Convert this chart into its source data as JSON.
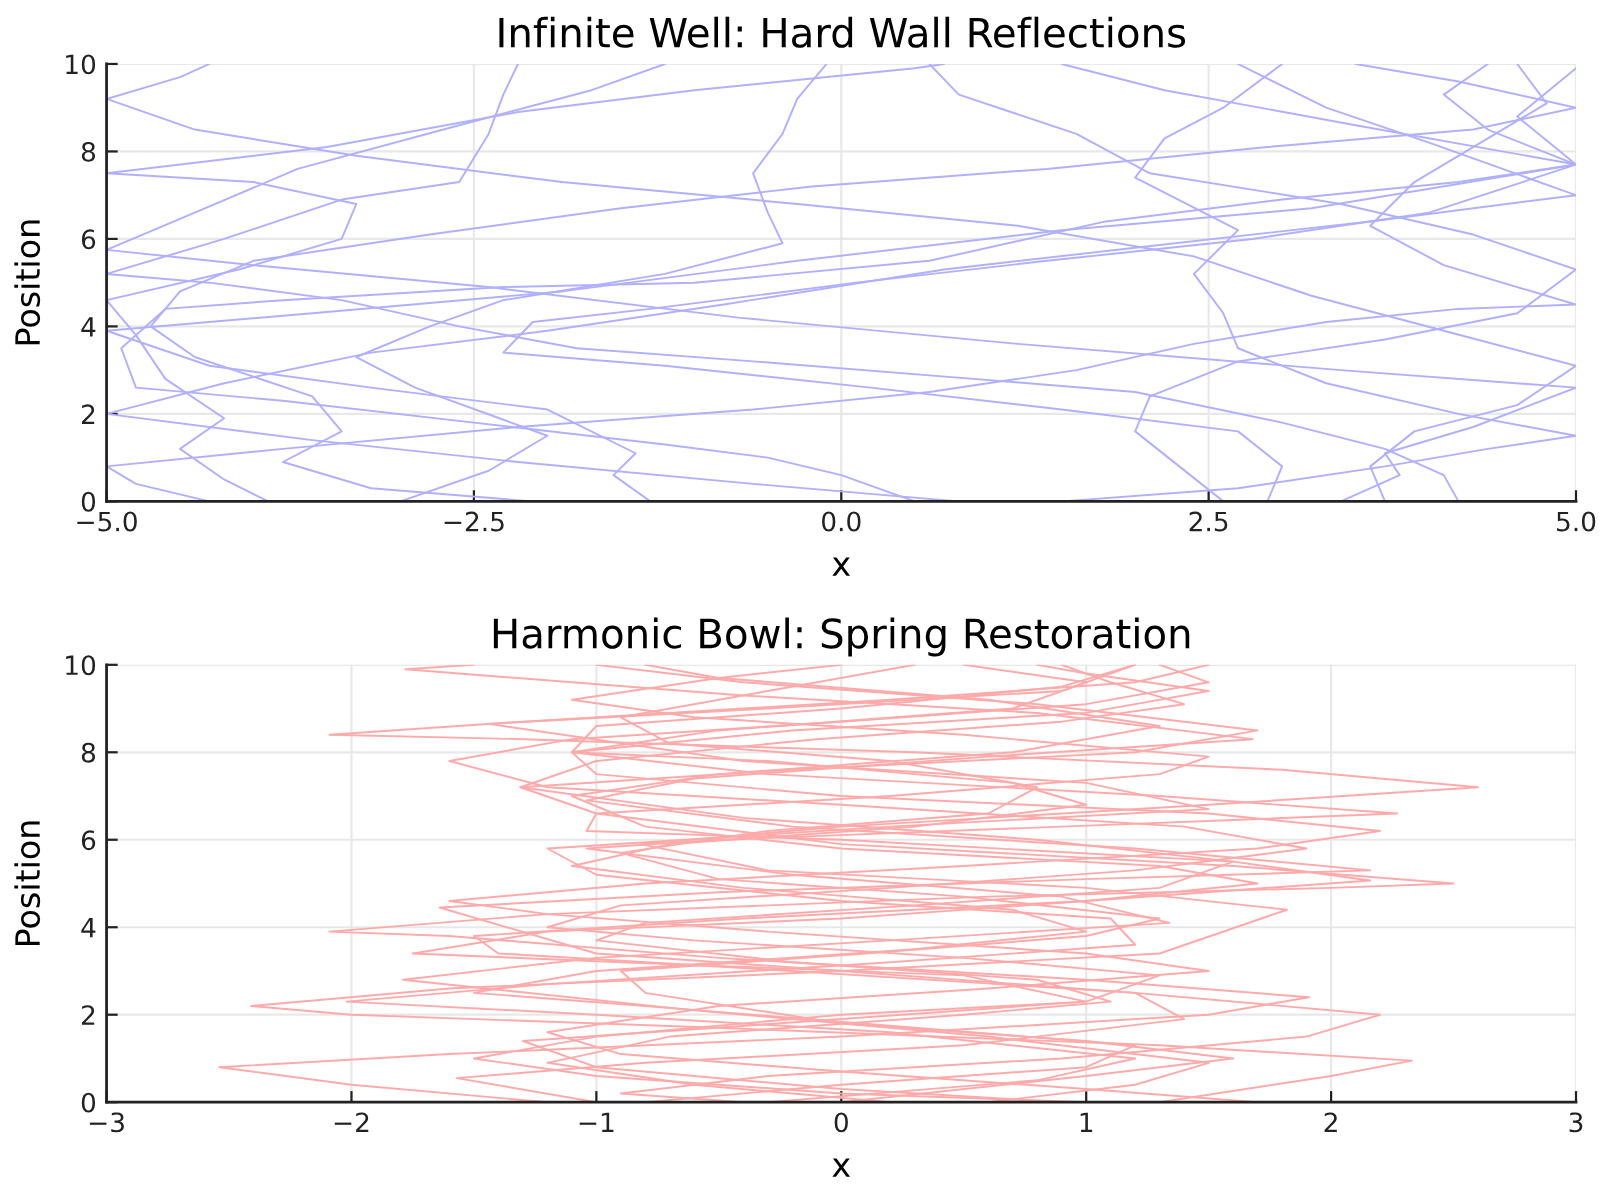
{
  "chart_data": [
    {
      "type": "line",
      "title": "Infinite Well: Hard Wall Reflections",
      "xlabel": "x",
      "ylabel": "Position",
      "xlim": [
        -5,
        5
      ],
      "ylim": [
        0,
        10
      ],
      "xticks": [
        {
          "value": -5,
          "label": "−5.0"
        },
        {
          "value": -2.5,
          "label": "−2.5"
        },
        {
          "value": 0,
          "label": "0.0"
        },
        {
          "value": 2.5,
          "label": "2.5"
        },
        {
          "value": 5,
          "label": "5.0"
        }
      ],
      "yticks": [
        0,
        2,
        4,
        6,
        8,
        10
      ],
      "grid": true,
      "series": [
        {
          "color": "#b0b0ff",
          "x": [
            -1.3,
            -1.55,
            -1.4,
            -2.0,
            -3.2,
            -4.3,
            -5.0,
            -3.6,
            -1.9,
            -0.3,
            1.5,
            3.2,
            5.0,
            3.5,
            2.2,
            1.5
          ],
          "values": [
            0,
            0.6,
            1.1,
            2.1,
            2.6,
            3.1,
            3.9,
            4.3,
            4.8,
            5.5,
            6.2,
            6.7,
            7.7,
            8.6,
            9.4,
            10
          ]
        },
        {
          "color": "#b0b0ff",
          "x": [
            0.8,
            -0.6,
            -2.2,
            -3.6,
            -5.0,
            -4.2,
            -3.2,
            -2.0,
            -0.8,
            0.7,
            2.0,
            3.6,
            5.0,
            4.0,
            3.3,
            2.7
          ],
          "values": [
            0,
            0.4,
            0.9,
            1.4,
            2.0,
            2.7,
            3.4,
            3.9,
            4.5,
            5.3,
            5.8,
            6.4,
            7.0,
            8.2,
            9.0,
            10
          ]
        },
        {
          "color": "#b0b0ff",
          "x": [
            3.4,
            3.8,
            3.7,
            4.3,
            5.0,
            3.4,
            1.2,
            -0.7,
            -2.4,
            -4.0,
            -5.0,
            -4.4,
            -3.7,
            -2.6,
            -1.7,
            -1.2
          ],
          "values": [
            0,
            0.6,
            1.1,
            1.7,
            2.6,
            3.0,
            3.6,
            4.2,
            4.9,
            5.4,
            5.75,
            6.6,
            7.6,
            8.6,
            9.4,
            10
          ]
        },
        {
          "color": "#b0b0ff",
          "x": [
            -4.3,
            -4.8,
            -5.0,
            -3.8,
            -2.2,
            -0.6,
            0.6,
            1.6,
            2.4,
            3.3,
            4.2,
            5.0,
            4.1,
            3.6,
            3.9,
            4.4,
            4.8,
            4.6
          ],
          "values": [
            0,
            0.4,
            0.8,
            1.2,
            1.7,
            2.1,
            2.5,
            3.0,
            3.6,
            4.1,
            4.4,
            4.5,
            5.4,
            6.3,
            7.3,
            8.3,
            9.1,
            10
          ]
        },
        {
          "color": "#b0b0ff",
          "x": [
            2.6,
            2.3,
            2.0,
            2.1,
            2.7,
            3.7,
            4.6,
            5.0,
            4.3,
            3.4,
            2.1,
            1.6,
            0.8,
            0.6
          ],
          "values": [
            0,
            0.8,
            1.6,
            2.4,
            3.2,
            3.7,
            4.3,
            5.3,
            6.1,
            6.8,
            7.5,
            8.4,
            9.3,
            10
          ]
        },
        {
          "color": "#b0b0ff",
          "x": [
            -2.1,
            -3.2,
            -3.8,
            -3.4,
            -3.6,
            -4.4,
            -4.7,
            -4.5,
            -4.0,
            -2.8,
            -1.5,
            -0.2,
            1.4,
            2.9,
            4.3,
            5.0,
            4.2,
            3.5
          ],
          "values": [
            0,
            0.3,
            0.9,
            1.6,
            2.4,
            3.3,
            4.0,
            4.8,
            5.5,
            6.1,
            6.7,
            7.2,
            7.6,
            8.1,
            8.5,
            9.0,
            9.6,
            10
          ]
        },
        {
          "color": "#b0b0ff",
          "x": [
            3.7,
            3.6,
            3.9,
            4.6,
            5.0,
            4.1,
            3.2,
            2.4,
            1.2,
            -0.3,
            -1.9,
            -3.3,
            -4.4,
            -5.0,
            -4.5,
            -4.3
          ],
          "values": [
            0,
            0.8,
            1.6,
            2.2,
            3.1,
            3.9,
            4.7,
            5.6,
            6.3,
            6.8,
            7.3,
            7.9,
            8.5,
            9.2,
            9.7,
            10
          ]
        },
        {
          "color": "#b0b0ff",
          "x": [
            -3.0,
            -2.4,
            -2.0,
            -2.9,
            -3.3,
            -2.8,
            -2.3,
            -1.2,
            -0.4,
            -0.5,
            -0.6,
            -0.4,
            -0.3,
            -0.1
          ],
          "values": [
            0,
            0.7,
            1.5,
            2.6,
            3.3,
            4.0,
            4.6,
            5.2,
            5.9,
            6.6,
            7.5,
            8.4,
            9.2,
            10
          ]
        },
        {
          "color": "#b0b0ff",
          "x": [
            4.2,
            4.1,
            3.7,
            3.0,
            2.0,
            0.9,
            -0.6,
            -1.8,
            -2.6,
            -3.4,
            -4.3,
            -5.0,
            -4.2,
            -3.4,
            -2.6,
            -2.4,
            -2.3,
            -2.2
          ],
          "values": [
            0,
            0.6,
            1.2,
            1.8,
            2.5,
            2.8,
            3.2,
            3.5,
            4.0,
            4.6,
            5.0,
            5.2,
            6.0,
            6.9,
            7.3,
            8.4,
            9.3,
            10
          ]
        },
        {
          "color": "#b0b0ff",
          "x": [
            1.5,
            2.7,
            3.7,
            4.4,
            5.0,
            4.2,
            3.3,
            2.7,
            2.6,
            2.4,
            2.7,
            2.0,
            2.2,
            2.6,
            3.0
          ],
          "values": [
            0,
            0.3,
            0.8,
            1.2,
            1.5,
            2.0,
            2.7,
            3.5,
            4.3,
            5.2,
            6.2,
            7.4,
            8.3,
            9.0,
            10
          ]
        },
        {
          "color": "#b0b0ff",
          "x": [
            0.5,
            0.0,
            -0.5,
            -1.2,
            -2.5,
            -3.8,
            -4.8,
            -4.9,
            -4.6,
            -3.8,
            -2.3,
            -1.0,
            0.6,
            1.8,
            3.0,
            4.2,
            5.0,
            4.4,
            4.1,
            4.4
          ],
          "values": [
            0,
            0.6,
            1.0,
            1.3,
            1.8,
            2.3,
            2.6,
            3.5,
            4.4,
            4.6,
            4.9,
            5.0,
            5.5,
            6.4,
            6.9,
            7.3,
            7.7,
            8.5,
            9.3,
            10
          ]
        },
        {
          "color": "#b0b0ff",
          "x": [
            -3.9,
            -4.2,
            -4.5,
            -4.2,
            -4.6,
            -4.8,
            -5.0,
            -4.1,
            -3.4,
            -3.3,
            -4.0,
            -5.0,
            -3.5,
            -2.2,
            -1.0,
            0.5,
            0.7
          ],
          "values": [
            0,
            0.5,
            1.2,
            1.9,
            2.8,
            3.8,
            4.6,
            5.3,
            6.0,
            6.8,
            7.3,
            7.5,
            8.1,
            8.9,
            9.4,
            9.9,
            10
          ]
        },
        {
          "color": "#b0b0ff",
          "x": [
            2.9,
            3.0,
            2.7,
            1.5,
            0.2,
            -1.2,
            -2.3,
            -2.1,
            -1.3,
            0.1,
            1.4,
            2.8,
            4.0,
            5.0,
            4.6,
            5.0
          ],
          "values": [
            0,
            0.8,
            1.6,
            2.1,
            2.6,
            3.1,
            3.4,
            4.1,
            4.4,
            5.0,
            5.5,
            6.0,
            6.6,
            7.7,
            8.8,
            9.9
          ]
        }
      ]
    },
    {
      "type": "line",
      "title": "Harmonic Bowl: Spring Restoration",
      "xlabel": "x",
      "ylabel": "Position",
      "xlim": [
        -3,
        3
      ],
      "ylim": [
        0,
        10
      ],
      "xticks": [
        {
          "value": -3,
          "label": "−3"
        },
        {
          "value": -2,
          "label": "−2"
        },
        {
          "value": -1,
          "label": "−1"
        },
        {
          "value": 0,
          "label": "0"
        },
        {
          "value": 1,
          "label": "1"
        },
        {
          "value": 2,
          "label": "2"
        },
        {
          "value": 3,
          "label": "3"
        }
      ],
      "yticks": [
        0,
        2,
        4,
        6,
        8,
        10
      ],
      "grid": true,
      "series": [
        {
          "color": "#ffaaaa",
          "x": [
            -1.2,
            -2.0,
            -2.54,
            -1.6,
            0.0,
            1.5,
            1.91,
            1.0,
            -0.5,
            -1.6,
            -2.09,
            -1.2,
            0.6,
            2.0,
            2.5,
            1.6,
            0.0,
            -1.0,
            -1.31,
            -0.2,
            1.2,
            1.7,
            0.8,
            -0.4,
            -1.0
          ],
          "values": [
            0,
            0.4,
            0.8,
            1.1,
            1.5,
            2.0,
            2.4,
            2.8,
            3.3,
            3.8,
            3.9,
            4.3,
            4.7,
            4.9,
            5.0,
            5.4,
            5.9,
            6.6,
            7.2,
            7.6,
            8.0,
            8.5,
            9.1,
            9.6,
            10
          ]
        },
        {
          "color": "#ffaaaa",
          "x": [
            1.3,
            2.0,
            2.33,
            1.3,
            -0.5,
            -2.0,
            -2.41,
            -1.6,
            0.0,
            1.3,
            1.82,
            1.0,
            -0.3,
            -0.82,
            0.0,
            1.5,
            2.6,
            1.8,
            0.3,
            -1.3,
            -2.09,
            -1.3,
            0.2,
            1.2,
            1.5
          ],
          "values": [
            0,
            0.6,
            0.95,
            1.3,
            1.7,
            2.0,
            2.2,
            2.6,
            3.0,
            3.4,
            4.4,
            4.9,
            5.3,
            5.9,
            6.3,
            6.8,
            7.2,
            7.6,
            8.0,
            8.3,
            8.4,
            8.7,
            9.2,
            9.6,
            10
          ]
        },
        {
          "color": "#ffaaaa",
          "x": [
            -1.0,
            -1.57,
            -0.8,
            0.5,
            1.4,
            1.2,
            0.0,
            -1.0,
            -1.64,
            -0.5,
            1.0,
            2.16,
            1.2,
            -0.2,
            -1.04,
            -0.6,
            0.6,
            1.68,
            0.8,
            -0.4,
            -1.1,
            -1.78,
            -1.5
          ],
          "values": [
            0,
            0.55,
            0.9,
            1.3,
            1.9,
            2.5,
            3.0,
            3.4,
            4.45,
            4.8,
            5.1,
            5.3,
            5.8,
            6.3,
            6.9,
            7.4,
            7.9,
            8.3,
            8.9,
            9.3,
            9.6,
            9.9,
            10
          ]
        },
        {
          "color": "#ffaaaa",
          "x": [
            0.6,
            1.2,
            1.5,
            0.6,
            -0.6,
            -1.79,
            -1.0,
            0.2,
            1.34,
            0.9,
            -0.2,
            -1.04,
            -0.5,
            0.9,
            2.27,
            1.3,
            -0.3,
            -1.1,
            -0.5,
            0.7,
            1.0,
            0.5
          ],
          "values": [
            0,
            0.4,
            0.9,
            1.5,
            2.1,
            2.8,
            3.3,
            3.7,
            4.1,
            4.7,
            5.2,
            5.8,
            6.0,
            6.3,
            6.6,
            7.0,
            7.5,
            8.0,
            8.5,
            9.0,
            9.6,
            10
          ]
        },
        {
          "color": "#ffaaaa",
          "x": [
            -0.3,
            0.8,
            1.2,
            0.2,
            -1.0,
            -2.02,
            -1.2,
            0.2,
            1.2,
            1.1,
            0.0,
            -1.0,
            -1.2,
            0.2,
            1.5,
            1.0,
            -0.4,
            -1.44,
            -0.3,
            0.9,
            1.2
          ],
          "values": [
            0,
            0.5,
            1.0,
            1.6,
            2.0,
            2.3,
            2.7,
            3.2,
            3.6,
            4.2,
            4.6,
            5.2,
            5.8,
            6.3,
            6.7,
            7.3,
            7.8,
            8.65,
            9.0,
            9.4,
            10
          ]
        },
        {
          "color": "#ffaaaa",
          "x": [
            0.9,
            0.0,
            -1.0,
            -1.3,
            0.0,
            1.0,
            0.5,
            -0.9,
            -1.75,
            -1.2,
            0.0,
            1.0,
            1.7,
            1.3,
            0.0,
            -0.8,
            -1.1,
            -0.5,
            0.7,
            1.3,
            0.6,
            -0.5,
            -0.8
          ],
          "values": [
            0,
            0.3,
            0.8,
            1.4,
            1.9,
            2.3,
            2.9,
            3.2,
            3.4,
            3.9,
            4.2,
            4.6,
            5.0,
            5.4,
            5.8,
            6.3,
            7.0,
            7.5,
            8.0,
            8.6,
            9.2,
            9.7,
            10
          ]
        },
        {
          "color": "#ffaaaa",
          "x": [
            -0.4,
            -0.9,
            -0.3,
            0.9,
            1.9,
            2.2,
            1.2,
            -0.2,
            -1.4,
            -1.5,
            -0.4,
            1.0,
            2.16,
            1.6,
            0.0,
            -1.04,
            -1.0,
            0.2,
            1.3,
            1.5,
            0.5,
            -0.6,
            -1.1,
            -0.5,
            0.0
          ],
          "values": [
            0,
            0.2,
            0.6,
            1.0,
            1.5,
            2.0,
            2.5,
            3.0,
            3.4,
            3.8,
            4.2,
            4.6,
            5.07,
            5.5,
            6.0,
            6.2,
            6.6,
            7.0,
            7.5,
            7.9,
            8.4,
            8.8,
            9.2,
            9.7,
            10
          ]
        },
        {
          "color": "#ffaaaa",
          "x": [
            0.2,
            -0.6,
            -1.2,
            -0.7,
            0.5,
            1.1,
            0.8,
            -0.2,
            -1.0,
            -0.8,
            0.3,
            1.3,
            1.6,
            0.8,
            -0.4,
            -1.31,
            -1.0,
            -0.1,
            0.9,
            1.4,
            1.1,
            0.9
          ],
          "values": [
            0,
            0.4,
            0.9,
            1.5,
            2.0,
            2.3,
            2.8,
            3.2,
            3.7,
            4.1,
            4.5,
            4.9,
            5.5,
            6.0,
            6.5,
            7.2,
            7.8,
            8.3,
            8.7,
            9.1,
            9.6,
            10
          ]
        },
        {
          "color": "#ffaaaa",
          "x": [
            1.7,
            1.0,
            0.0,
            -0.9,
            -1.2,
            -0.5,
            0.6,
            1.5,
            1.0,
            -0.3,
            -1.2,
            -1.6,
            -0.8,
            0.5,
            1.7,
            2.2,
            1.5,
            0.0,
            -1.0,
            -1.1,
            -0.2,
            1.0,
            1.5,
            1.0,
            0.8
          ],
          "values": [
            0,
            0.3,
            0.7,
            1.1,
            1.6,
            2.2,
            2.6,
            3.0,
            3.4,
            3.9,
            4.3,
            4.6,
            5.0,
            5.4,
            5.8,
            6.2,
            6.6,
            7.0,
            7.5,
            8.0,
            8.5,
            8.9,
            9.4,
            9.8,
            10
          ]
        },
        {
          "color": "#ffaaaa",
          "x": [
            -0.8,
            0.0,
            1.0,
            1.2,
            0.3,
            -0.8,
            -1.5,
            -1.0,
            0.3,
            1.0,
            0.7,
            -0.4,
            -1.1,
            -0.7,
            0.3,
            1.0,
            0.7,
            -0.3,
            -1.1,
            -1.0,
            0.0,
            0.9,
            1.2
          ],
          "values": [
            0,
            0.4,
            0.8,
            1.3,
            1.7,
            2.2,
            2.5,
            3.0,
            3.5,
            3.9,
            4.4,
            4.9,
            5.4,
            5.9,
            6.3,
            6.8,
            7.3,
            7.8,
            8.0,
            8.6,
            9.0,
            9.5,
            10
          ]
        },
        {
          "color": "#ffaaaa",
          "x": [
            0.0,
            1.0,
            1.6,
            1.0,
            0.0,
            -0.8,
            -0.9,
            0.1,
            1.0,
            1.3,
            0.5,
            -0.5,
            -0.9,
            -0.3,
            0.6,
            0.8,
            0.2,
            -0.7,
            -0.9,
            -0.3,
            0.3
          ],
          "values": [
            0,
            0.6,
            1.0,
            1.4,
            1.8,
            2.5,
            3.0,
            3.4,
            3.8,
            4.2,
            4.7,
            5.1,
            5.7,
            6.2,
            6.6,
            7.2,
            7.8,
            8.2,
            8.8,
            9.4,
            10
          ]
        },
        {
          "color": "#ffaaaa",
          "x": [
            1.0,
            0.0,
            -1.0,
            -1.5,
            -1.0,
            0.0,
            1.0,
            1.3,
            0.5,
            -0.6,
            -1.2,
            -0.9,
            0.2,
            1.2,
            1.9,
            1.4,
            0.0,
            -1.2,
            -1.6,
            -1.1,
            0.0,
            1.0,
            1.5,
            1.3
          ],
          "values": [
            0,
            0.2,
            0.6,
            1.0,
            1.5,
            2.0,
            2.3,
            2.9,
            3.3,
            3.7,
            4.0,
            4.5,
            4.9,
            5.3,
            5.8,
            6.3,
            6.8,
            7.2,
            7.8,
            8.3,
            8.7,
            9.1,
            9.6,
            10
          ]
        }
      ]
    }
  ]
}
